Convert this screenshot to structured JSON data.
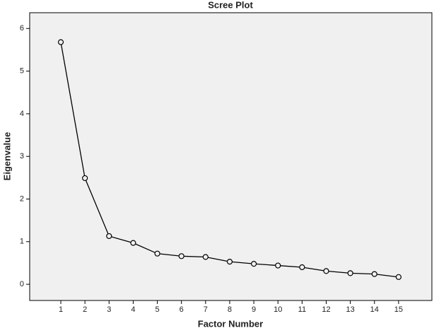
{
  "chart_data": {
    "type": "line",
    "title": "Scree Plot",
    "xlabel": "Factor Number",
    "ylabel": "Eigenvalue",
    "x": [
      1,
      2,
      3,
      4,
      5,
      6,
      7,
      8,
      9,
      10,
      11,
      12,
      13,
      14,
      15
    ],
    "values": [
      5.68,
      2.49,
      1.13,
      0.97,
      0.72,
      0.66,
      0.64,
      0.53,
      0.48,
      0.44,
      0.4,
      0.31,
      0.26,
      0.24,
      0.17
    ],
    "color": "#000000",
    "background": "#f0f0f0",
    "xlim": [
      -0.29,
      16.38
    ],
    "xticks": [
      1,
      2,
      3,
      4,
      5,
      6,
      7,
      8,
      9,
      10,
      11,
      12,
      13,
      14,
      15
    ],
    "ylim": [
      -0.38,
      6.37
    ],
    "yticks": [
      0,
      1,
      2,
      3,
      4,
      5,
      6
    ]
  }
}
